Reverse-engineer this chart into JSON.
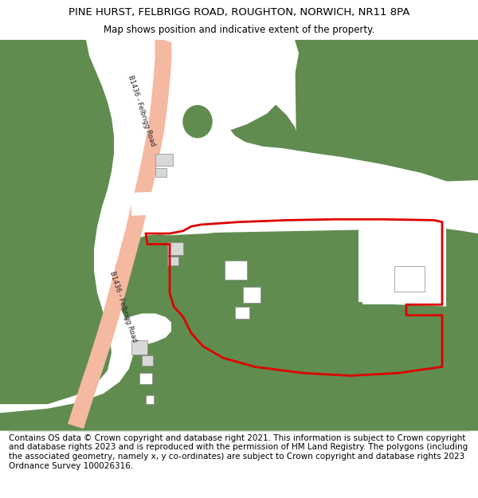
{
  "title": "PINE HURST, FELBRIGG ROAD, ROUGHTON, NORWICH, NR11 8PA",
  "subtitle": "Map shows position and indicative extent of the property.",
  "footer": "Contains OS data © Crown copyright and database right 2021. This information is subject to Crown copyright and database rights 2023 and is reproduced with the permission of HM Land Registry. The polygons (including the associated geometry, namely x, y co-ordinates) are subject to Crown copyright and database rights 2023 Ordnance Survey 100026316.",
  "bg_color": "#ffffff",
  "green_color": "#608C50",
  "road_color": "#F5B8A0",
  "red_outline_color": "#dd0000",
  "title_fontsize": 9.5,
  "subtitle_fontsize": 8.5,
  "footer_fontsize": 7.5,
  "map_border_color": "#cccccc"
}
